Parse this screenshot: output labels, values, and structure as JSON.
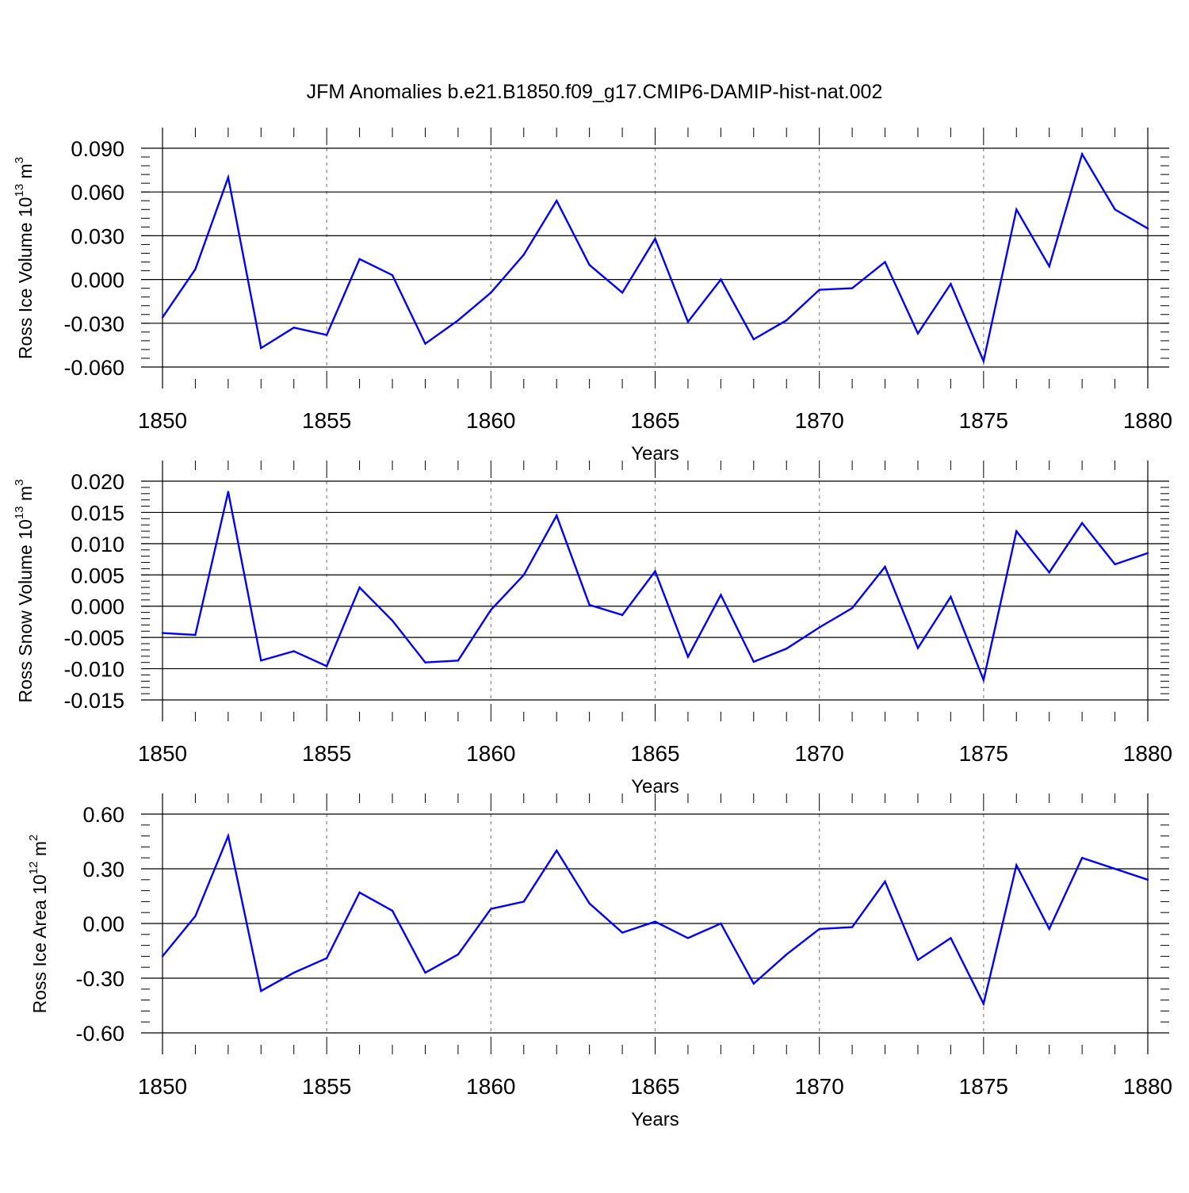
{
  "colors": {
    "series": "#0000ff",
    "axis": "#000000",
    "grid": "#888888"
  },
  "title": "JFM Anomalies b.e21.B1850.f09_g17.CMIP6-DAMIP-hist-nat.002",
  "chart_data": [
    {
      "type": "line",
      "title": "JFM Anomalies b.e21.B1850.f09_g17.CMIP6-DAMIP-hist-nat.002",
      "xlabel": "Years",
      "ylabel": {
        "text": "Ross Ice Volume 10",
        "exp": "13",
        "unit": " m",
        "unit_exp": "3"
      },
      "xlim": [
        1850,
        1880
      ],
      "ylim": [
        -0.06,
        0.09
      ],
      "yticks": [
        -0.06,
        -0.03,
        0.0,
        0.03,
        0.06,
        0.09
      ],
      "ytick_labels": [
        "-0.060",
        "-0.030",
        "0.000",
        "0.030",
        "0.060",
        "0.090"
      ],
      "xticks": [
        1850,
        1855,
        1860,
        1865,
        1870,
        1875,
        1880
      ],
      "xtick_labels": [
        "1850",
        "1855",
        "1860",
        "1865",
        "1870",
        "1875",
        "1880"
      ],
      "grid": "dashed vertical at major x ticks",
      "x": [
        1850,
        1851,
        1852,
        1853,
        1854,
        1855,
        1856,
        1857,
        1858,
        1859,
        1860,
        1861,
        1862,
        1863,
        1864,
        1865,
        1866,
        1867,
        1868,
        1869,
        1870,
        1871,
        1872,
        1873,
        1874,
        1875,
        1876,
        1877,
        1878,
        1879,
        1880
      ],
      "values": [
        -0.026,
        0.007,
        0.07,
        -0.047,
        -0.033,
        -0.038,
        0.014,
        0.003,
        -0.044,
        -0.028,
        -0.009,
        0.017,
        0.054,
        0.01,
        -0.009,
        0.028,
        -0.029,
        0.0,
        -0.041,
        -0.028,
        -0.007,
        -0.006,
        0.012,
        -0.037,
        -0.003,
        -0.056,
        0.048,
        0.009,
        0.086,
        0.048,
        0.035
      ]
    },
    {
      "type": "line",
      "xlabel": "Years",
      "ylabel": {
        "text": "Ross Snow Volume 10",
        "exp": "13",
        "unit": " m",
        "unit_exp": "3"
      },
      "xlim": [
        1850,
        1880
      ],
      "ylim": [
        -0.015,
        0.02
      ],
      "yticks": [
        -0.015,
        -0.01,
        -0.005,
        0.0,
        0.005,
        0.01,
        0.015,
        0.02
      ],
      "ytick_labels": [
        "-0.015",
        "-0.010",
        "-0.005",
        "0.000",
        "0.005",
        "0.010",
        "0.015",
        "0.020"
      ],
      "xticks": [
        1850,
        1855,
        1860,
        1865,
        1870,
        1875,
        1880
      ],
      "xtick_labels": [
        "1850",
        "1855",
        "1860",
        "1865",
        "1870",
        "1875",
        "1880"
      ],
      "grid": "dashed vertical at major x ticks",
      "x": [
        1850,
        1851,
        1852,
        1853,
        1854,
        1855,
        1856,
        1857,
        1858,
        1859,
        1860,
        1861,
        1862,
        1863,
        1864,
        1865,
        1866,
        1867,
        1868,
        1869,
        1870,
        1871,
        1872,
        1873,
        1874,
        1875,
        1876,
        1877,
        1878,
        1879,
        1880
      ],
      "values": [
        -0.0043,
        -0.0046,
        0.0183,
        -0.0087,
        -0.0072,
        -0.0096,
        0.003,
        -0.0023,
        -0.009,
        -0.0087,
        -0.0006,
        0.005,
        0.0145,
        0.0002,
        -0.0014,
        0.0056,
        -0.0081,
        0.0018,
        -0.0089,
        -0.0068,
        -0.0034,
        -0.0003,
        0.0063,
        -0.0067,
        0.0015,
        -0.0118,
        0.012,
        0.0054,
        0.0133,
        0.0067,
        0.0085
      ]
    },
    {
      "type": "line",
      "xlabel": "Years",
      "ylabel": {
        "text": "Ross Ice Area 10",
        "exp": "12",
        "unit": " m",
        "unit_exp": "2"
      },
      "xlim": [
        1850,
        1880
      ],
      "ylim": [
        -0.6,
        0.6
      ],
      "yticks": [
        -0.6,
        -0.3,
        0.0,
        0.3,
        0.6
      ],
      "ytick_labels": [
        "-0.60",
        "-0.30",
        "0.00",
        "0.30",
        "0.60"
      ],
      "xticks": [
        1850,
        1855,
        1860,
        1865,
        1870,
        1875,
        1880
      ],
      "xtick_labels": [
        "1850",
        "1855",
        "1860",
        "1865",
        "1870",
        "1875",
        "1880"
      ],
      "grid": "dashed vertical at major x ticks",
      "x": [
        1850,
        1851,
        1852,
        1853,
        1854,
        1855,
        1856,
        1857,
        1858,
        1859,
        1860,
        1861,
        1862,
        1863,
        1864,
        1865,
        1866,
        1867,
        1868,
        1869,
        1870,
        1871,
        1872,
        1873,
        1874,
        1875,
        1876,
        1877,
        1878,
        1879,
        1880
      ],
      "values": [
        -0.18,
        0.04,
        0.48,
        -0.37,
        -0.27,
        -0.19,
        0.17,
        0.07,
        -0.27,
        -0.17,
        0.08,
        0.12,
        0.4,
        0.11,
        -0.05,
        0.01,
        -0.08,
        0.0,
        -0.33,
        -0.17,
        -0.03,
        -0.02,
        0.23,
        -0.2,
        -0.08,
        -0.44,
        0.32,
        -0.03,
        0.36,
        0.3,
        0.24
      ]
    }
  ]
}
